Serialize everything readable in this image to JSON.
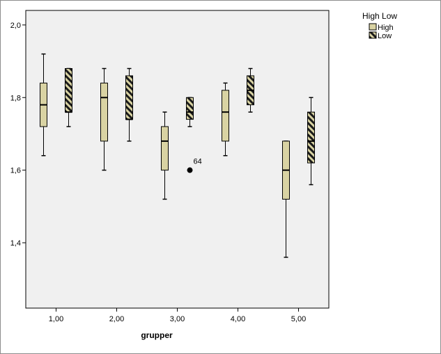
{
  "chart_data": {
    "type": "boxplot",
    "xlabel": "grupper",
    "ylabel": "",
    "categories": [
      "1,00",
      "2,00",
      "3,00",
      "4,00",
      "5,00"
    ],
    "ylim": [
      1.22,
      2.04
    ],
    "yticks": [
      1.4,
      1.6,
      1.8,
      2.0
    ],
    "ytick_labels": [
      "1,4",
      "1,6",
      "1,8",
      "2,0"
    ],
    "legend": {
      "title": "High Low",
      "placement": "top-right, outside plot"
    },
    "series": [
      {
        "name": "High",
        "color": "#d9d3a3",
        "pattern": "solid",
        "boxes": [
          {
            "min": 1.64,
            "q1": 1.72,
            "median": 1.78,
            "q3": 1.84,
            "max": 1.92
          },
          {
            "min": 1.6,
            "q1": 1.68,
            "median": 1.8,
            "q3": 1.84,
            "max": 1.88
          },
          {
            "min": 1.52,
            "q1": 1.6,
            "median": 1.68,
            "q3": 1.72,
            "max": 1.76
          },
          {
            "min": 1.64,
            "q1": 1.68,
            "median": 1.76,
            "q3": 1.82,
            "max": 1.84
          },
          {
            "min": 1.36,
            "q1": 1.52,
            "median": 1.6,
            "q3": 1.68,
            "max": 1.68
          }
        ]
      },
      {
        "name": "Low",
        "color": "#d9d3a3",
        "pattern": "hatched",
        "boxes": [
          {
            "min": 1.72,
            "q1": 1.76,
            "median": 1.76,
            "q3": 1.88,
            "max": 1.88
          },
          {
            "min": 1.68,
            "q1": 1.74,
            "median": 1.74,
            "q3": 1.86,
            "max": 1.88
          },
          {
            "min": 1.72,
            "q1": 1.74,
            "median": 1.76,
            "q3": 1.8,
            "max": 1.8,
            "outliers": [
              {
                "value": 1.6,
                "label": "64"
              }
            ]
          },
          {
            "min": 1.76,
            "q1": 1.78,
            "median": 1.82,
            "q3": 1.86,
            "max": 1.88
          },
          {
            "min": 1.56,
            "q1": 1.62,
            "median": 1.68,
            "q3": 1.76,
            "max": 1.8
          }
        ]
      }
    ],
    "grid": false,
    "plot_background": "#f0f0f0",
    "box_edge_color": "#000000"
  }
}
